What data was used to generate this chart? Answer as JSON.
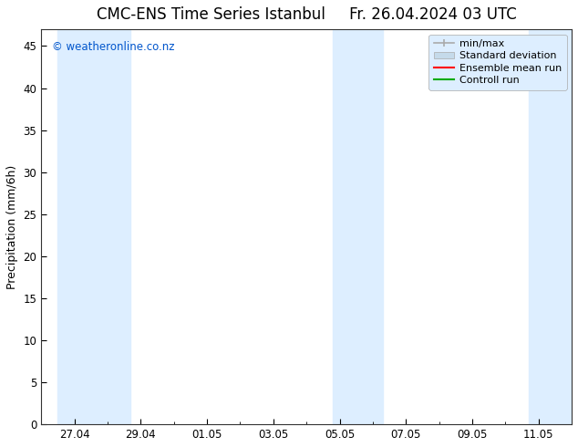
{
  "title": "CMC-ENS Time Series Istanbul",
  "title_right": "Fr. 26.04.2024 03 UTC",
  "ylabel": "Precipitation (mm/6h)",
  "watermark": "© weatheronline.co.nz",
  "watermark_color": "#0055cc",
  "ylim": [
    0,
    47
  ],
  "yticks": [
    0,
    5,
    10,
    15,
    20,
    25,
    30,
    35,
    40,
    45
  ],
  "xtick_labels": [
    "27.04",
    "29.04",
    "01.05",
    "03.05",
    "05.05",
    "07.05",
    "09.05",
    "11.05"
  ],
  "shaded_color": "#ddeeff",
  "background_color": "#ffffff",
  "legend_labels": [
    "min/max",
    "Standard deviation",
    "Ensemble mean run",
    "Controll run"
  ],
  "legend_minmax_color": "#aaaaaa",
  "legend_std_color": "#c5daea",
  "legend_mean_color": "#ff0000",
  "legend_ctrl_color": "#00aa00",
  "title_fontsize": 12,
  "axis_fontsize": 9,
  "tick_fontsize": 8.5,
  "legend_fontsize": 8,
  "legend_bg": "#ddeeff"
}
